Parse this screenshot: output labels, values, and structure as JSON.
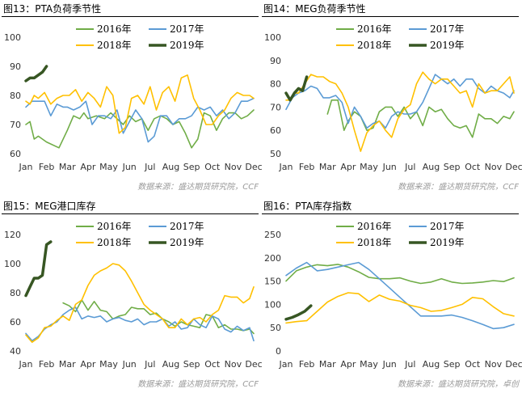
{
  "panels": [
    {
      "title": "图13：PTA负荷季节性",
      "source": "数据来源：盛达期货研究院，CCF"
    },
    {
      "title": "图14：MEG负荷季节性",
      "source": "数据来源：盛达期货研究院，CCF"
    },
    {
      "title": "图15：MEG港口库存",
      "source": "数据来源：盛达期货研究院，CCF"
    },
    {
      "title": "图16：PTA库存指数",
      "source": "数据来源：盛达期货研究院，卓创"
    }
  ],
  "colors": {
    "2016年": "#70ad47",
    "2017年": "#5b9bd5",
    "2018年": "#ffc000",
    "2019年": "#375623"
  },
  "chart_data": [
    {
      "type": "line",
      "categories": [
        "Jan",
        "Feb",
        "Mar",
        "Apr",
        "May",
        "Jun",
        "Jul",
        "Aug",
        "Sep",
        "Oct",
        "Nov",
        "Dec"
      ],
      "ylim": [
        60,
        100
      ],
      "yticks": [
        60,
        70,
        80,
        90,
        100
      ],
      "series": [
        {
          "name": "2016年",
          "x": [
            1.0,
            1.2,
            1.4,
            1.6,
            2.0,
            2.6,
            3.0,
            3.3,
            3.6,
            3.8,
            4.0,
            4.4,
            4.8,
            5.1,
            5.4,
            5.7,
            6.0,
            6.3,
            6.6,
            6.9,
            7.2,
            7.5,
            7.8,
            8.1,
            8.4,
            8.7,
            9.0,
            9.3,
            9.6,
            9.9,
            10.2,
            10.5,
            10.8,
            11.1,
            11.4,
            11.7,
            12.0
          ],
          "values": [
            70,
            71,
            65,
            66,
            64,
            62,
            68,
            73,
            72,
            74,
            72,
            73,
            72,
            74,
            72,
            70,
            73,
            71,
            72,
            68,
            72,
            73,
            72,
            70,
            71,
            67,
            62,
            65,
            74,
            73,
            68,
            72,
            74,
            74,
            72,
            73,
            75
          ]
        },
        {
          "name": "2017年",
          "x": [
            1.0,
            1.3,
            1.6,
            1.9,
            2.2,
            2.5,
            2.8,
            3.0,
            3.3,
            3.6,
            3.9,
            4.2,
            4.5,
            4.8,
            5.1,
            5.4,
            5.7,
            6.0,
            6.3,
            6.6,
            6.9,
            7.2,
            7.5,
            7.8,
            8.1,
            8.4,
            8.7,
            9.0,
            9.3,
            9.6,
            9.9,
            10.2,
            10.5,
            10.8,
            11.1,
            11.4,
            11.7,
            12.0
          ],
          "values": [
            76,
            78,
            78,
            78,
            73,
            77,
            76,
            76,
            75,
            76,
            78,
            70,
            73,
            73,
            72,
            75,
            67,
            71,
            75,
            72,
            64,
            66,
            73,
            73,
            70,
            72,
            72,
            73,
            76,
            75,
            76,
            73,
            75,
            72,
            74,
            78,
            78,
            79
          ]
        },
        {
          "name": "2018年",
          "x": [
            1.0,
            1.2,
            1.4,
            1.6,
            1.9,
            2.2,
            2.5,
            2.8,
            3.1,
            3.4,
            3.7,
            4.0,
            4.3,
            4.6,
            4.9,
            5.2,
            5.5,
            5.8,
            6.1,
            6.4,
            6.7,
            7.0,
            7.3,
            7.6,
            7.9,
            8.2,
            8.5,
            8.8,
            9.1,
            9.4,
            9.7,
            10.0,
            10.3,
            10.6,
            10.9,
            11.2,
            11.5,
            11.8,
            12.0
          ],
          "values": [
            78,
            77,
            80,
            79,
            81,
            77,
            79,
            80,
            80,
            82,
            78,
            81,
            79,
            76,
            83,
            80,
            67,
            69,
            79,
            80,
            77,
            83,
            75,
            81,
            83,
            78,
            86,
            87,
            79,
            75,
            70,
            70,
            73,
            75,
            79,
            81,
            80,
            80,
            79
          ]
        },
        {
          "name": "2019年",
          "x": [
            1.0,
            1.2,
            1.4,
            1.6,
            1.8,
            2.0
          ],
          "values": [
            85,
            86,
            86,
            87,
            88,
            90
          ]
        }
      ]
    },
    {
      "type": "line",
      "categories": [
        "Jan",
        "Feb",
        "Mar",
        "Apr",
        "May",
        "Jun",
        "Jul",
        "Aug",
        "Sep",
        "Oct",
        "Nov",
        "Dec"
      ],
      "ylim": [
        50,
        100
      ],
      "yticks": [
        50,
        60,
        70,
        80,
        90,
        100
      ],
      "series": [
        {
          "name": "2016年",
          "x": [
            3.0,
            3.2,
            3.5,
            3.8,
            4.0,
            4.3,
            4.6,
            4.9,
            5.2,
            5.5,
            5.8,
            6.1,
            6.4,
            6.7,
            7.0,
            7.3,
            7.6,
            7.9,
            8.2,
            8.5,
            8.8,
            9.1,
            9.4,
            9.7,
            10.0,
            10.3,
            10.6,
            10.9,
            11.2,
            11.5,
            11.8,
            12.0
          ],
          "values": [
            67,
            73,
            73,
            60,
            64,
            68,
            66,
            60,
            61,
            68,
            70,
            70,
            66,
            70,
            65,
            68,
            62,
            70,
            68,
            69,
            65,
            62,
            61,
            62,
            57,
            67,
            65,
            65,
            63,
            66,
            65,
            68
          ]
        },
        {
          "name": "2017年",
          "x": [
            1.0,
            1.3,
            1.6,
            1.9,
            2.2,
            2.5,
            2.8,
            3.1,
            3.4,
            3.7,
            4.0,
            4.3,
            4.6,
            4.9,
            5.2,
            5.5,
            5.8,
            6.1,
            6.4,
            6.7,
            7.0,
            7.3,
            7.6,
            7.9,
            8.2,
            8.5,
            8.8,
            9.1,
            9.4,
            9.7,
            10.0,
            10.3,
            10.6,
            10.9,
            11.2,
            11.5,
            11.8,
            12.0
          ],
          "values": [
            69,
            74,
            76,
            77,
            79,
            78,
            74,
            74,
            75,
            72,
            63,
            70,
            66,
            61,
            63,
            64,
            61,
            66,
            68,
            67,
            67,
            68,
            72,
            78,
            84,
            82,
            80,
            82,
            79,
            82,
            82,
            78,
            76,
            79,
            77,
            76,
            74,
            77
          ]
        },
        {
          "name": "2018年",
          "x": [
            1.0,
            1.2,
            1.4,
            1.6,
            1.9,
            2.2,
            2.5,
            2.8,
            3.1,
            3.4,
            3.7,
            4.0,
            4.3,
            4.6,
            4.9,
            5.2,
            5.5,
            5.8,
            6.1,
            6.4,
            6.7,
            7.0,
            7.3,
            7.6,
            7.9,
            8.2,
            8.5,
            8.8,
            9.1,
            9.4,
            9.7,
            10.0,
            10.3,
            10.6,
            10.9,
            11.2,
            11.5,
            11.8,
            12.0
          ],
          "values": [
            73,
            73,
            76,
            76,
            80,
            84,
            83,
            83,
            81,
            80,
            76,
            70,
            60,
            51,
            59,
            62,
            64,
            60,
            57,
            65,
            69,
            71,
            80,
            85,
            82,
            80,
            82,
            82,
            79,
            76,
            77,
            70,
            80,
            76,
            77,
            77,
            80,
            83,
            76
          ]
        },
        {
          "name": "2019年",
          "x": [
            1.0,
            1.2,
            1.4,
            1.6,
            1.8,
            2.0
          ],
          "values": [
            76,
            73,
            76,
            78,
            77,
            83
          ]
        }
      ]
    },
    {
      "type": "line",
      "categories": [
        "Jan",
        "Feb",
        "Mar",
        "Apr",
        "May",
        "Jun",
        "Jul",
        "Aug",
        "Sep",
        "Oct",
        "Nov",
        "Dec"
      ],
      "ylim": [
        40,
        120
      ],
      "yticks": [
        40,
        60,
        80,
        100,
        120
      ],
      "series": [
        {
          "name": "2016年",
          "x": [
            2.8,
            3.1,
            3.4,
            3.7,
            4.0,
            4.3,
            4.6,
            4.9,
            5.2,
            5.5,
            5.8,
            6.1,
            6.4,
            6.7,
            7.0,
            7.3,
            7.6,
            7.9,
            8.2,
            8.5,
            8.8,
            9.1,
            9.4,
            9.7,
            10.0,
            10.3,
            10.6,
            10.9,
            11.2,
            11.5,
            11.8,
            12.0
          ],
          "values": [
            73,
            71,
            67,
            75,
            68,
            74,
            68,
            67,
            62,
            64,
            65,
            70,
            69,
            69,
            65,
            66,
            62,
            60,
            57,
            60,
            58,
            57,
            56,
            65,
            64,
            56,
            58,
            55,
            55,
            54,
            55,
            52
          ]
        },
        {
          "name": "2017年",
          "x": [
            1.0,
            1.3,
            1.6,
            1.9,
            2.2,
            2.5,
            2.8,
            3.1,
            3.4,
            3.7,
            4.0,
            4.3,
            4.6,
            4.9,
            5.2,
            5.5,
            5.8,
            6.1,
            6.4,
            6.7,
            7.0,
            7.3,
            7.6,
            7.9,
            8.2,
            8.5,
            8.8,
            9.1,
            9.4,
            9.7,
            10.0,
            10.3,
            10.6,
            10.9,
            11.2,
            11.5,
            11.8,
            12.0
          ],
          "values": [
            52,
            47,
            50,
            55,
            58,
            60,
            65,
            68,
            70,
            62,
            64,
            63,
            64,
            60,
            62,
            63,
            61,
            60,
            62,
            58,
            60,
            60,
            62,
            57,
            60,
            55,
            56,
            62,
            58,
            56,
            64,
            62,
            55,
            53,
            57,
            54,
            56,
            47
          ]
        },
        {
          "name": "2018年",
          "x": [
            1.0,
            1.3,
            1.6,
            1.9,
            2.2,
            2.5,
            2.8,
            3.1,
            3.4,
            3.7,
            4.0,
            4.3,
            4.6,
            4.9,
            5.2,
            5.5,
            5.8,
            6.1,
            6.4,
            6.7,
            7.0,
            7.3,
            7.6,
            7.9,
            8.2,
            8.5,
            8.8,
            9.1,
            9.4,
            9.7,
            10.0,
            10.3,
            10.6,
            10.9,
            11.2,
            11.5,
            11.8,
            12.0
          ],
          "values": [
            51,
            46,
            49,
            56,
            57,
            61,
            64,
            61,
            72,
            75,
            85,
            92,
            95,
            97,
            100,
            99,
            95,
            88,
            80,
            72,
            68,
            65,
            62,
            56,
            56,
            62,
            58,
            62,
            63,
            60,
            65,
            68,
            78,
            77,
            77,
            73,
            76,
            84
          ]
        },
        {
          "name": "2019年",
          "x": [
            1.0,
            1.2,
            1.4,
            1.6,
            1.8,
            2.0,
            2.2
          ],
          "values": [
            78,
            84,
            90,
            90,
            92,
            113,
            115
          ]
        }
      ]
    },
    {
      "type": "line",
      "categories": [
        "Jan",
        "Feb",
        "Mar",
        "Apr",
        "May",
        "Jun",
        "Jul",
        "Aug",
        "Sep",
        "Oct",
        "Nov",
        "Dec"
      ],
      "ylim": [
        0,
        250
      ],
      "yticks": [
        0,
        50,
        100,
        150,
        200,
        250
      ],
      "series": [
        {
          "name": "2016年",
          "x": [
            1.0,
            1.5,
            2.0,
            2.5,
            3.0,
            3.5,
            4.0,
            4.5,
            5.0,
            5.5,
            6.0,
            6.5,
            7.0,
            7.5,
            8.0,
            8.5,
            9.0,
            9.5,
            10.0,
            10.5,
            11.0,
            11.5,
            12.0
          ],
          "values": [
            150,
            172,
            180,
            185,
            183,
            186,
            180,
            170,
            158,
            155,
            155,
            157,
            150,
            145,
            148,
            155,
            148,
            145,
            146,
            148,
            151,
            149,
            157
          ]
        },
        {
          "name": "2017年",
          "x": [
            1.0,
            1.5,
            2.0,
            2.5,
            3.0,
            3.5,
            4.0,
            4.5,
            5.0,
            5.5,
            6.0,
            6.5,
            7.0,
            7.5,
            8.0,
            8.5,
            9.0,
            9.5,
            10.0,
            10.5,
            11.0,
            11.5,
            12.0
          ],
          "values": [
            162,
            178,
            190,
            172,
            175,
            180,
            185,
            190,
            175,
            155,
            135,
            115,
            95,
            75,
            75,
            75,
            77,
            72,
            65,
            57,
            48,
            50,
            57
          ]
        },
        {
          "name": "2018年",
          "x": [
            1.0,
            1.5,
            2.0,
            2.5,
            3.0,
            3.5,
            4.0,
            4.5,
            5.0,
            5.5,
            6.0,
            6.5,
            7.0,
            7.5,
            8.0,
            8.5,
            9.0,
            9.5,
            10.0,
            10.5,
            11.0,
            11.5,
            12.0
          ],
          "values": [
            60,
            63,
            65,
            85,
            105,
            117,
            125,
            123,
            106,
            120,
            111,
            107,
            98,
            93,
            85,
            87,
            93,
            100,
            115,
            112,
            95,
            80,
            75
          ]
        },
        {
          "name": "2019年",
          "x": [
            1.0,
            1.3,
            1.6,
            1.9,
            2.2
          ],
          "values": [
            68,
            72,
            78,
            85,
            97
          ]
        }
      ]
    }
  ]
}
